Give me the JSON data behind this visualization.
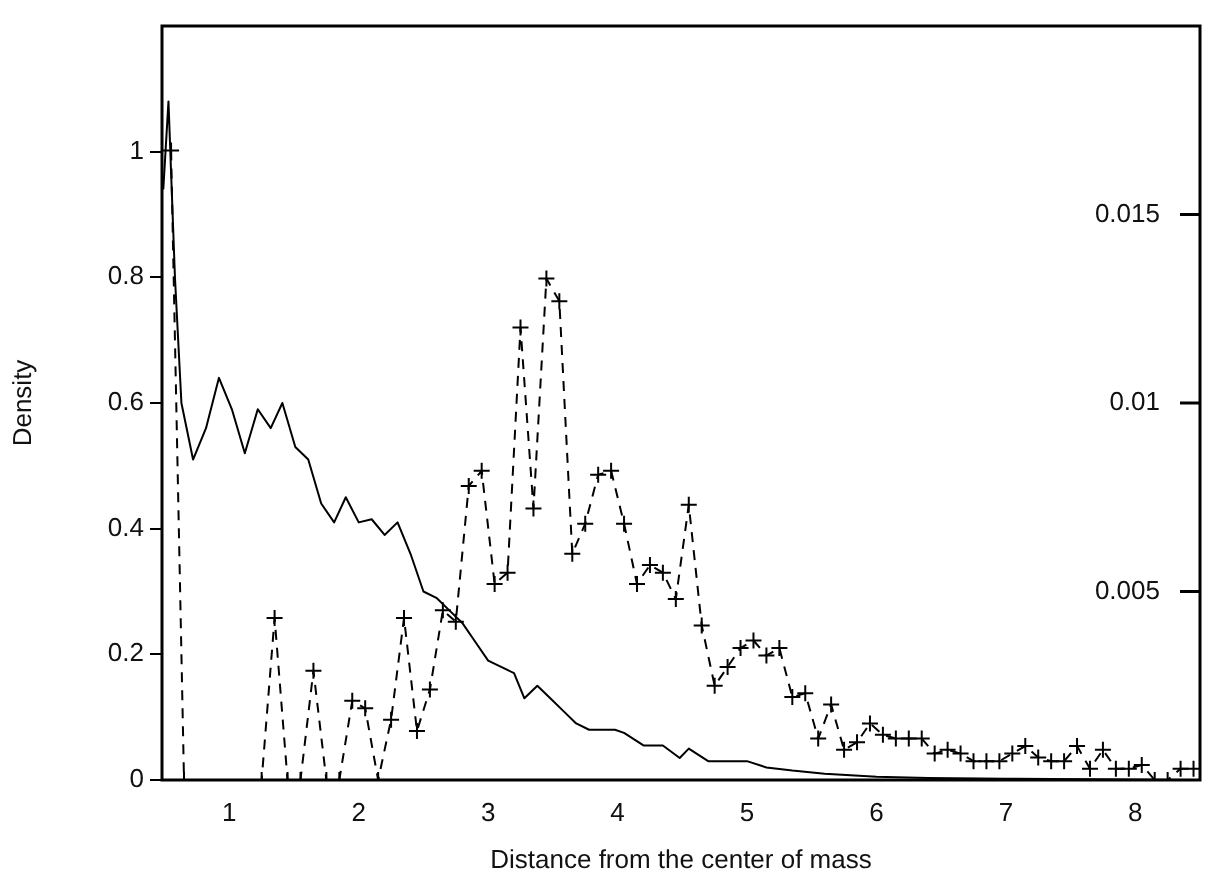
{
  "chart_data": {
    "type": "line",
    "xlabel": "Distance from the center of mass",
    "ylabel": "Density",
    "xlim": [
      0.48,
      8.5
    ],
    "xticks": [
      1,
      2,
      3,
      4,
      5,
      6,
      7,
      8
    ],
    "ylim": [
      0,
      1.2
    ],
    "yticks": [
      0,
      0.2,
      0.4,
      0.6,
      0.8,
      1
    ],
    "y2lim": [
      0,
      0.02
    ],
    "y2ticks": [
      0.005,
      0.01,
      0.015
    ],
    "series": [
      {
        "color": "#000000",
        "marker": "none",
        "line_style": "solid",
        "x": [
          0.49,
          0.53,
          0.58,
          0.63,
          0.72,
          0.82,
          0.92,
          1.02,
          1.12,
          1.22,
          1.32,
          1.41,
          1.51,
          1.61,
          1.71,
          1.81,
          1.9,
          2.0,
          2.1,
          2.2,
          2.3,
          2.4,
          2.5,
          2.6,
          2.7,
          2.8,
          2.9,
          3.0,
          3.1,
          3.2,
          3.28,
          3.38,
          3.48,
          3.58,
          3.68,
          3.78,
          3.88,
          3.98,
          4.05,
          4.2,
          4.35,
          4.48,
          4.55,
          4.7,
          4.85,
          5.0,
          5.15,
          5.35,
          5.6,
          6.0,
          6.4,
          7.0,
          8.45
        ],
        "values": [
          0.94,
          1.08,
          0.8,
          0.6,
          0.51,
          0.56,
          0.64,
          0.59,
          0.52,
          0.59,
          0.56,
          0.6,
          0.53,
          0.51,
          0.44,
          0.41,
          0.45,
          0.41,
          0.415,
          0.39,
          0.41,
          0.36,
          0.3,
          0.29,
          0.27,
          0.25,
          0.22,
          0.19,
          0.18,
          0.17,
          0.13,
          0.15,
          0.13,
          0.11,
          0.09,
          0.08,
          0.08,
          0.08,
          0.075,
          0.055,
          0.055,
          0.035,
          0.05,
          0.03,
          0.03,
          0.03,
          0.02,
          0.015,
          0.01,
          0.005,
          0.003,
          0.002,
          0
        ]
      },
      {
        "color": "#000000",
        "marker": "cross",
        "line_style": "dashed",
        "axis": "y2",
        "x": [
          0.55,
          0.65,
          1.25,
          1.35,
          1.45,
          1.55,
          1.65,
          1.75,
          1.85,
          1.95,
          2.05,
          2.15,
          2.25,
          2.35,
          2.45,
          2.55,
          2.65,
          2.75,
          2.85,
          2.95,
          3.05,
          3.15,
          3.25,
          3.35,
          3.45,
          3.55,
          3.65,
          3.75,
          3.85,
          3.95,
          4.05,
          4.15,
          4.25,
          4.35,
          4.45,
          4.55,
          4.65,
          4.75,
          4.85,
          4.95,
          5.05,
          5.15,
          5.25,
          5.35,
          5.45,
          5.55,
          5.65,
          5.75,
          5.85,
          5.95,
          6.05,
          6.15,
          6.25,
          6.35,
          6.45,
          6.55,
          6.65,
          6.75,
          6.85,
          6.95,
          7.05,
          7.15,
          7.25,
          7.35,
          7.45,
          7.55,
          7.65,
          7.75,
          7.85,
          7.95,
          8.05,
          8.15,
          8.25,
          8.35,
          8.45
        ],
        "values": [
          0.0167,
          0,
          0,
          0.0043,
          0,
          0,
          0.0029,
          0,
          0,
          0.0021,
          0.0019,
          0,
          0.0016,
          0.0043,
          0.0013,
          0.0024,
          0.0045,
          0.0042,
          0.0078,
          0.0082,
          0.0052,
          0.0055,
          0.012,
          0.0072,
          0.0133,
          0.0127,
          0.006,
          0.0068,
          0.0081,
          0.0082,
          0.0068,
          0.0052,
          0.0057,
          0.0055,
          0.0048,
          0.0073,
          0.0041,
          0.0025,
          0.003,
          0.0035,
          0.0037,
          0.0033,
          0.0035,
          0.0022,
          0.0023,
          0.0011,
          0.002,
          0.0008,
          0.001,
          0.0015,
          0.0012,
          0.0011,
          0.0011,
          0.0011,
          0.0007,
          0.0008,
          0.0007,
          0.0005,
          0.0005,
          0.0005,
          0.0007,
          0.0009,
          0.0006,
          0.0005,
          0.0005,
          0.0009,
          0.0003,
          0.0008,
          0.0003,
          0.0003,
          0.0004,
          0,
          0,
          0.0003,
          0.0003
        ]
      }
    ]
  }
}
